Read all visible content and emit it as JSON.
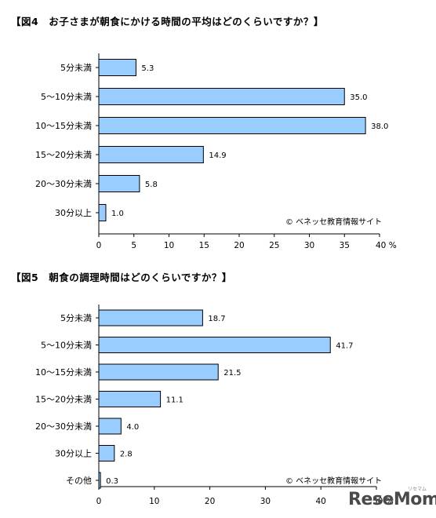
{
  "chart_data": [
    {
      "type": "bar",
      "orientation": "horizontal",
      "title": "【図4　お子さまが朝食にかける時間の平均はどのくらいですか？】",
      "categories": [
        "5分未満",
        "5〜10分未満",
        "10〜15分未満",
        "15〜20分未満",
        "20〜30分未満",
        "30分以上"
      ],
      "values": [
        5.3,
        35.0,
        38.0,
        14.9,
        5.8,
        1.0
      ],
      "value_labels": [
        "5.3",
        "35.0",
        "38.0",
        "14.9",
        "5.8",
        "1.0"
      ],
      "xlim": [
        0,
        40
      ],
      "xticks": [
        "0",
        "5",
        "10",
        "15",
        "20",
        "25",
        "30",
        "35",
        "40 %"
      ],
      "credit": "© ベネッセ教育情報サイト",
      "bar_color": "#99ccff",
      "grid": false
    },
    {
      "type": "bar",
      "orientation": "horizontal",
      "title": "【図5　朝食の調理時間はどのくらいですか？】",
      "categories": [
        "5分未満",
        "5〜10分未満",
        "10〜15分未満",
        "15〜20分未満",
        "20〜30分未満",
        "30分以上",
        "その他"
      ],
      "values": [
        18.7,
        41.7,
        21.5,
        11.1,
        4.0,
        2.8,
        0.3
      ],
      "value_labels": [
        "18.7",
        "41.7",
        "21.5",
        "11.1",
        "4.0",
        "2.8",
        "0.3"
      ],
      "xlim": [
        0,
        50
      ],
      "xticks": [
        "0",
        "10",
        "20",
        "30",
        "40",
        "50 %"
      ],
      "credit": "© ベネッセ教育情報サイト",
      "bar_color": "#99ccff",
      "grid": false
    }
  ],
  "watermark": "ReseMom",
  "watermark_sub": "リセマム"
}
